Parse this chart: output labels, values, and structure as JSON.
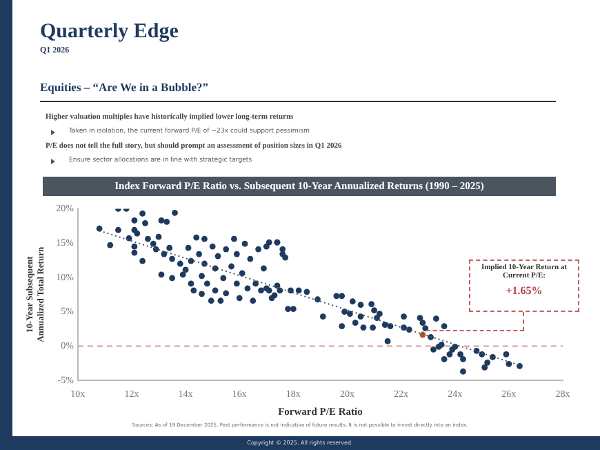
{
  "chart_data": {
    "type": "scatter",
    "title": "Index Forward P/E Ratio vs. Subsequent 10-Year Annualized Returns (1990 – 2025)",
    "xlabel": "Forward P/E Ratio",
    "ylabel": "10-Year Subsequent Annualized Total Return",
    "xlim": [
      10,
      28
    ],
    "xticks": [
      {
        "value": 10,
        "label": "10x"
      },
      {
        "value": 12,
        "label": "12x"
      },
      {
        "value": 14,
        "label": "14x"
      },
      {
        "value": 16,
        "label": "16x"
      },
      {
        "value": 18,
        "label": "18x"
      },
      {
        "value": 20,
        "label": "20x"
      },
      {
        "value": 22,
        "label": "22x"
      },
      {
        "value": 24,
        "label": "24x"
      },
      {
        "value": 26,
        "label": "26x"
      },
      {
        "value": 28,
        "label": "28x"
      }
    ],
    "ylim": [
      -5,
      20
    ],
    "yticks": [
      {
        "value": -5,
        "label": "-5%"
      },
      {
        "value": 0,
        "label": "0%"
      },
      {
        "value": 5,
        "label": "5%"
      },
      {
        "value": 10,
        "label": "10%"
      },
      {
        "value": 15,
        "label": "15%"
      },
      {
        "value": 20,
        "label": "20%"
      }
    ],
    "grid": false,
    "legend": false,
    "marker": "circle",
    "series": [
      {
        "type": "scatter",
        "color": "#1f3a5f",
        "x": [
          10.8,
          11.2,
          11.5,
          11.8,
          11.5,
          12.1,
          12.1,
          12.2,
          11.9,
          12.1,
          12.1,
          12.4,
          12.4,
          12.5,
          12.6,
          12.8,
          12.9,
          13.0,
          13.1,
          13.3,
          13.6,
          13.1,
          13.2,
          13.4,
          13.5,
          13.5,
          13.8,
          13.9,
          14.0,
          14.1,
          14.2,
          14.2,
          14.3,
          14.4,
          14.5,
          14.6,
          14.6,
          14.7,
          14.7,
          14.8,
          14.95,
          15.0,
          15.1,
          15.1,
          15.2,
          15.3,
          15.4,
          15.5,
          15.5,
          15.7,
          15.8,
          15.9,
          15.9,
          16.0,
          16.1,
          16.2,
          16.3,
          16.4,
          16.5,
          16.6,
          16.7,
          16.8,
          16.9,
          17.0,
          17.1,
          17.2,
          17.4,
          17.4,
          17.6,
          17.8,
          17.9,
          17.1,
          17.4,
          17.6,
          17.7,
          17.0,
          17.3,
          17.5,
          18.0,
          18.2,
          18.5,
          18.9,
          19.1,
          19.6,
          19.8,
          19.8,
          19.9,
          20.1,
          20.2,
          20.3,
          20.5,
          20.5,
          20.6,
          20.9,
          20.95,
          21.0,
          21.1,
          21.2,
          21.4,
          21.5,
          21.6,
          22.1,
          22.1,
          22.3,
          22.7,
          22.8,
          22.9,
          23.1,
          23.2,
          23.3,
          23.4,
          23.5,
          23.6,
          23.6,
          23.8,
          23.9,
          24.0,
          24.2,
          24.3,
          24.3,
          24.8,
          25.0,
          25.1,
          25.2,
          25.4,
          25.9,
          26.0,
          26.4
        ],
        "values": [
          17.1,
          14.7,
          20.0,
          20.0,
          16.9,
          18.3,
          16.9,
          16.4,
          15.7,
          14.5,
          13.6,
          12.4,
          19.3,
          17.9,
          15.6,
          14.9,
          14.1,
          15.9,
          18.3,
          18.1,
          19.4,
          10.4,
          13.4,
          14.3,
          12.7,
          9.9,
          12.0,
          10.4,
          11.1,
          14.3,
          12.4,
          9.1,
          8.1,
          15.8,
          13.4,
          10.2,
          7.6,
          15.6,
          12.0,
          9.1,
          6.6,
          14.5,
          8.1,
          11.3,
          13.1,
          6.6,
          9.9,
          7.7,
          14.1,
          11.6,
          15.6,
          9.1,
          13.4,
          7.0,
          10.6,
          14.9,
          8.4,
          12.7,
          6.6,
          9.1,
          14.1,
          8.1,
          11.3,
          14.5,
          8.1,
          7.0,
          15.1,
          8.8,
          13.4,
          5.4,
          8.1,
          15.1,
          15.1,
          14.1,
          12.9,
          8.4,
          7.4,
          8.1,
          5.4,
          8.1,
          7.9,
          6.8,
          4.3,
          7.3,
          7.3,
          2.9,
          5.0,
          4.7,
          6.5,
          3.4,
          4.3,
          6.0,
          2.7,
          6.1,
          2.7,
          5.2,
          4.1,
          4.7,
          3.1,
          0.7,
          2.9,
          4.3,
          2.7,
          2.4,
          4.1,
          3.4,
          2.6,
          1.3,
          -0.5,
          4.0,
          -0.1,
          0.2,
          2.9,
          -1.9,
          -1.2,
          -0.5,
          -0.1,
          -1.2,
          -1.9,
          -3.7,
          -0.7,
          -1.2,
          -3.1,
          -2.4,
          -1.6,
          -1.2,
          -2.6,
          -2.9
        ]
      },
      {
        "type": "line",
        "color": "#4a5568",
        "line_style": "dotted",
        "marker": "none",
        "x": [
          10.8,
          26.5
        ],
        "values": [
          16.8,
          -2.9
        ]
      },
      {
        "type": "scatter",
        "color": "#b5562b",
        "x": [
          22.8
        ],
        "values": [
          1.65
        ]
      }
    ],
    "ref_lines": [
      {
        "axis": "y",
        "value": 0,
        "color": "#d99a9a",
        "line_style": "dashed"
      }
    ],
    "annotations": [
      "Quarterly Edge",
      "Q1 2026",
      "Equities – “Are We in a Bubble?”",
      "Higher valuation multiples have historically implied lower long-term returns",
      "Taken in isolation, the current forward P/E of ~23x could support pessimism",
      "P/E does not tell the full story, but should prompt an assessment of position sizes in Q1 2026",
      "Ensure sector allocations are in line with strategic targets",
      "Sources: As of 19 December 2025. Past performance is not indicative of future results. It is not possible to invest directly into an index.",
      "Copyright © 2025. All rights reserved.",
      "Implied 10-Year Return at Current P/E:",
      "+1.65%"
    ]
  }
}
